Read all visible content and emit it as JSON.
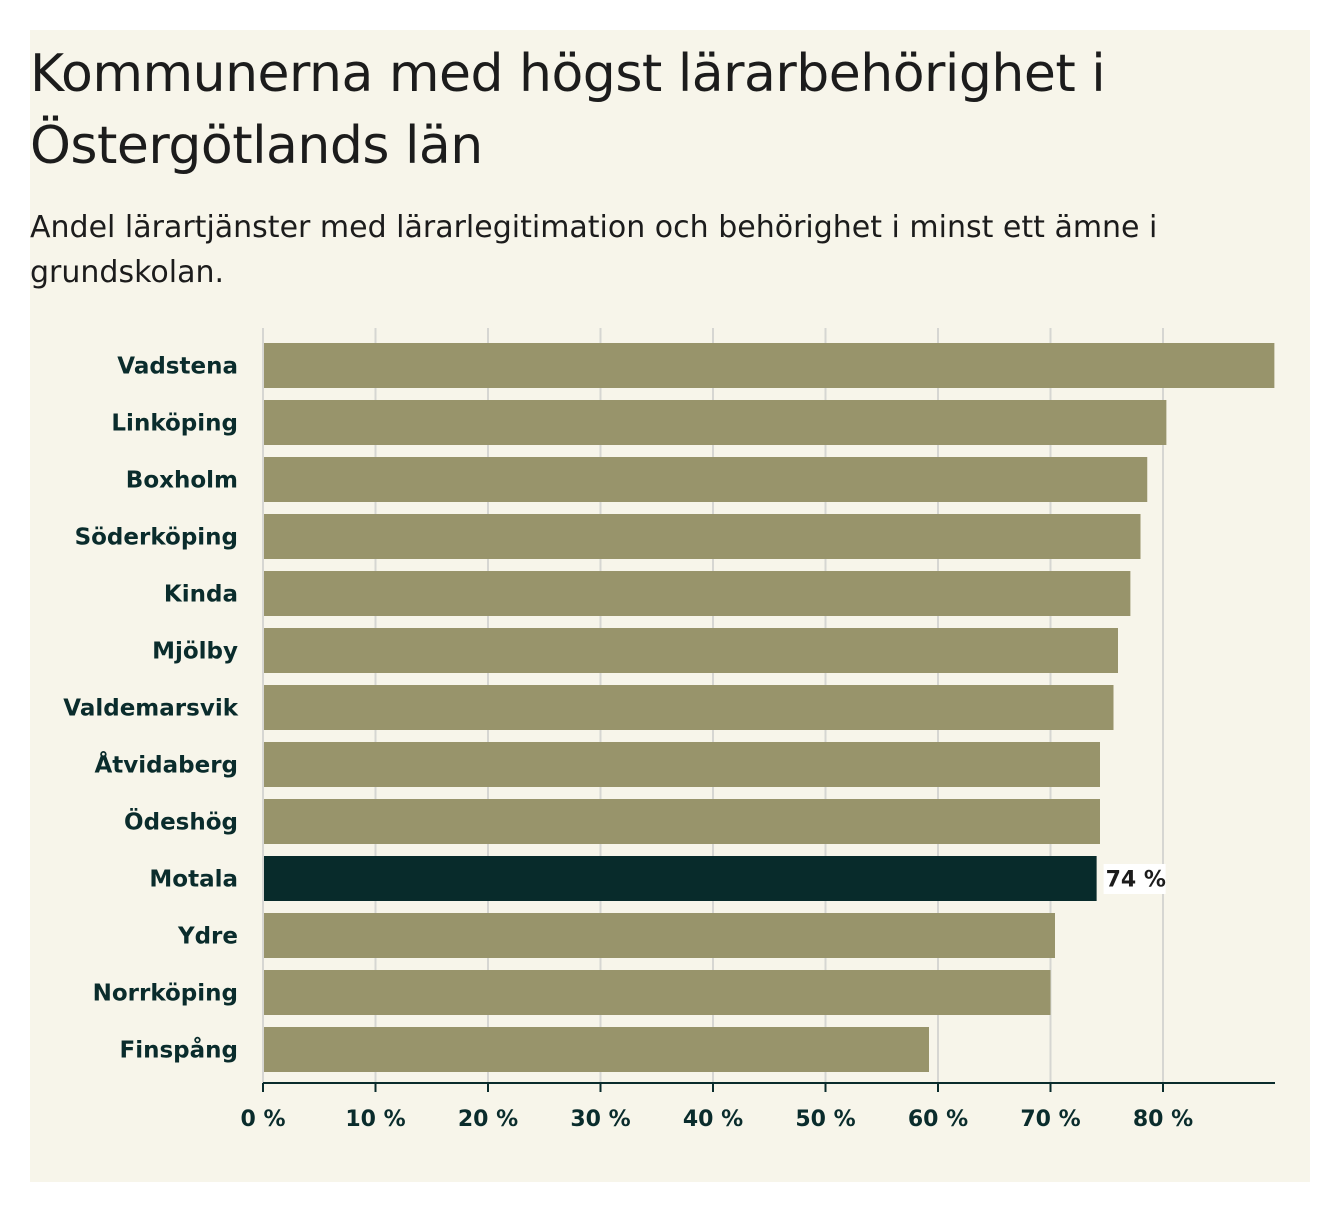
{
  "title": "Kommunerna med högst lärarbehörighet i Östergötlands län",
  "subtitle": "Andel lärartjänster med lärarlegitimation och behörighet i minst ett ämne i grundskolan.",
  "colors": {
    "background": "#f7f5ea",
    "bar": "#98946b",
    "highlight": "#082b2b",
    "grid": "#d6d6d2",
    "axis": "#0a2c2c"
  },
  "chart_data": {
    "type": "bar",
    "orientation": "horizontal",
    "categories": [
      "Vadstena",
      "Linköping",
      "Boxholm",
      "Söderköping",
      "Kinda",
      "Mjölby",
      "Valdemarsvik",
      "Åtvidaberg",
      "Ödeshög",
      "Motala",
      "Ydre",
      "Norrköping",
      "Finspång"
    ],
    "values": [
      89.9,
      80.3,
      78.6,
      78.0,
      77.1,
      76.0,
      75.6,
      74.4,
      74.4,
      74.1,
      70.4,
      70.0,
      59.2
    ],
    "highlight": "Motala",
    "highlight_label": "74 %",
    "xlim": [
      0,
      90
    ],
    "xticks": [
      0,
      10,
      20,
      30,
      40,
      50,
      60,
      70,
      80
    ],
    "xtick_labels": [
      "0 %",
      "10 %",
      "20 %",
      "30 %",
      "40 %",
      "50 %",
      "60 %",
      "70 %",
      "80 %"
    ],
    "grid": true,
    "xlabel": "",
    "ylabel": ""
  }
}
